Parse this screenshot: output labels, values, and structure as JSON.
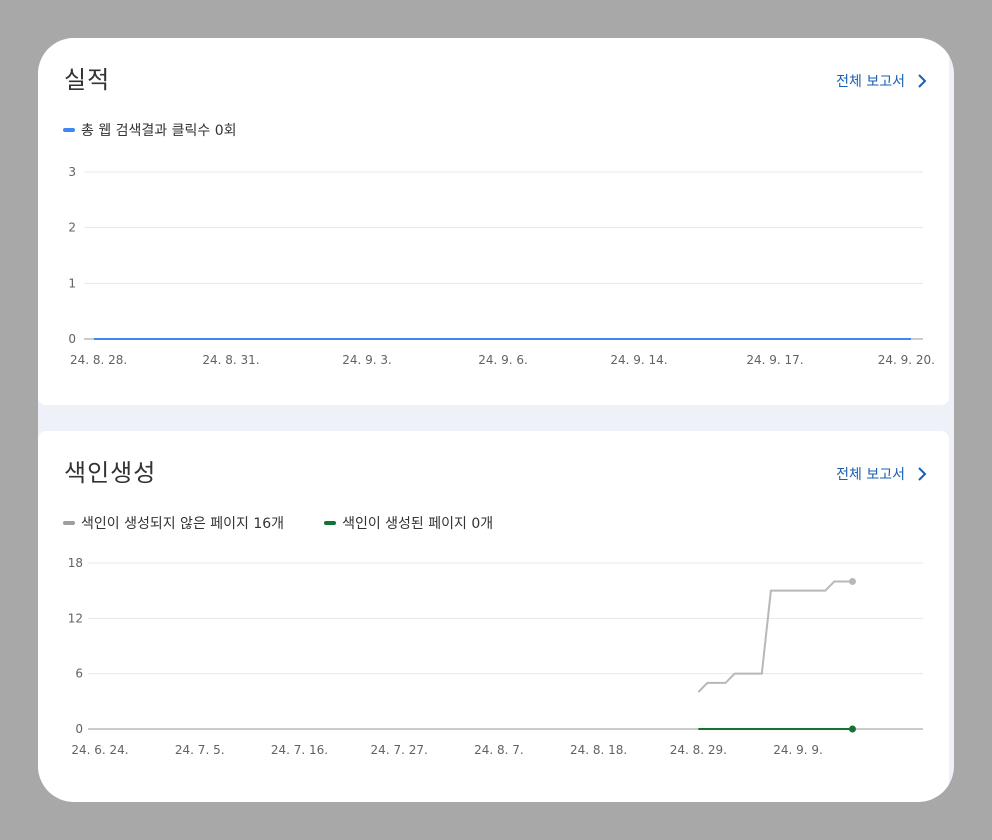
{
  "performance": {
    "title": "실적",
    "full_report": "전체 보고서",
    "legend": [
      {
        "label": "총 웹 검색결과 클릭수 0회",
        "color": "#4285f4"
      }
    ],
    "chart_data": {
      "type": "line",
      "x": [
        "24. 8. 28.",
        "24. 8. 31.",
        "24. 9. 3.",
        "24. 9. 6.",
        "24. 9. 14.",
        "24. 9. 17.",
        "24. 9. 20."
      ],
      "yticks": [
        0,
        1,
        2,
        3
      ],
      "ylim": [
        0,
        3
      ],
      "series": [
        {
          "name": "총 웹 검색결과 클릭수 0회",
          "color": "#4285f4",
          "values": [
            0,
            0,
            0,
            0,
            0,
            0,
            0
          ]
        }
      ]
    }
  },
  "indexing": {
    "title": "색인생성",
    "full_report": "전체 보고서",
    "legend": [
      {
        "label": "색인이 생성되지 않은 페이지 16개",
        "color": "#9e9e9e"
      },
      {
        "label": "색인이 생성된 페이지 0개",
        "color": "#137333"
      }
    ],
    "chart_data": {
      "type": "line",
      "x": [
        "24. 6. 24.",
        "24. 7. 5.",
        "24. 7. 16.",
        "24. 7. 27.",
        "24. 8. 7.",
        "24. 8. 18.",
        "24. 8. 29.",
        "24. 9. 9."
      ],
      "yticks": [
        0,
        6,
        12,
        18
      ],
      "ylim": [
        0,
        18
      ],
      "xrange_days": [
        0,
        91
      ],
      "series": [
        {
          "name": "색인이 생성되지 않은 페이지 16개",
          "color": "#b8b8b8",
          "points": [
            [
              66,
              4
            ],
            [
              67,
              5
            ],
            [
              69,
              5
            ],
            [
              70,
              6
            ],
            [
              73,
              6
            ],
            [
              74,
              15
            ],
            [
              80,
              15
            ],
            [
              81,
              16
            ],
            [
              83,
              16
            ]
          ]
        },
        {
          "name": "색인이 생성된 페이지 0개",
          "color": "#137333",
          "points": [
            [
              66,
              0
            ],
            [
              83,
              0
            ]
          ]
        }
      ]
    }
  }
}
